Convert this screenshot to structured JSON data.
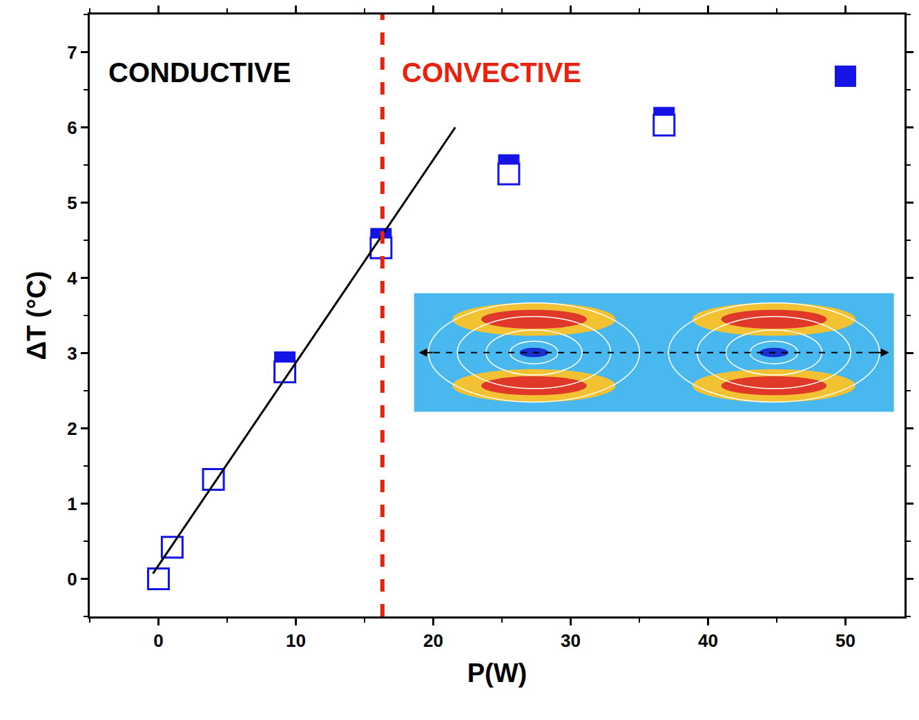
{
  "chart_data": {
    "type": "scatter",
    "xlabel": "P(W)",
    "ylabel": "ΔT (°C)",
    "xlim": [
      -5,
      54.3
    ],
    "xticks": [
      0,
      10,
      20,
      30,
      40,
      50
    ],
    "ylim": [
      -0.5,
      7.5
    ],
    "yticks": [
      0,
      1,
      2,
      3,
      4,
      5,
      6,
      7
    ],
    "grid": false,
    "series": [
      {
        "type": "scatter",
        "marker": "square",
        "color": "#1414e6",
        "x": [
          9.2,
          16.2,
          25.5,
          36.8,
          50
        ],
        "values": [
          2.88,
          4.52,
          5.5,
          6.13,
          6.68
        ]
      },
      {
        "type": "scatter",
        "marker": "square-open",
        "color": "#1414e6",
        "x": [
          0,
          1,
          4,
          9.2,
          16.2,
          25.5,
          36.8
        ],
        "values": [
          0,
          0.42,
          1.32,
          2.75,
          4.4,
          5.38,
          6.03
        ]
      },
      {
        "type": "line",
        "line_style": "solid",
        "color": "#000000",
        "x": [
          -0.4,
          21.6
        ],
        "values": [
          0.07,
          6.0
        ]
      }
    ],
    "vline": {
      "x": 16.3,
      "color": "#e8220c",
      "line_style": "dash"
    },
    "annotations": [
      {
        "text": "CONDUCTIVE",
        "color": "#000000"
      },
      {
        "text": "CONVECTIVE",
        "color": "#e8220c"
      }
    ]
  }
}
